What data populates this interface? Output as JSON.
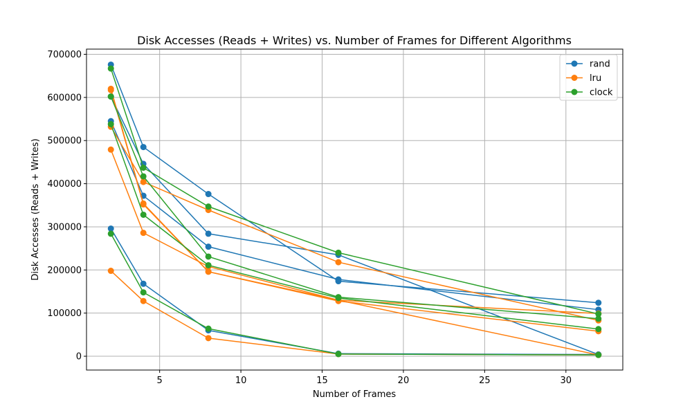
{
  "chart_data": {
    "type": "line",
    "title": "Disk Accesses (Reads + Writes) vs. Number of Frames for Different Algorithms",
    "xlabel": "Number of Frames",
    "ylabel": "Disk Accesses (Reads + Writes)",
    "xlim": [
      0.5,
      33.5
    ],
    "ylim": [
      -32000,
      712000
    ],
    "x_ticks": [
      5,
      10,
      15,
      20,
      25,
      30
    ],
    "y_ticks": [
      0,
      100000,
      200000,
      300000,
      400000,
      500000,
      600000,
      700000
    ],
    "grid": true,
    "legend_position": "top-right",
    "colors": {
      "rand": "#1f77b4",
      "lru": "#ff7f0e",
      "clock": "#2ca02c"
    },
    "x": [
      2,
      4,
      8,
      16,
      32
    ],
    "series": [
      {
        "name": "rand",
        "lines": [
          [
            676000,
            485000,
            376000,
            174000,
            124000
          ],
          [
            545000,
            372000,
            254000,
            178000,
            108000
          ],
          [
            296000,
            168000,
            60000,
            6000,
            4000
          ],
          [
            602000,
            446000,
            284000,
            235000,
            4000
          ]
        ]
      },
      {
        "name": "lru",
        "lines": [
          [
            620000,
            354000,
            196000,
            128000,
            58000
          ],
          [
            532000,
            404000,
            339000,
            218000,
            83000
          ],
          [
            479000,
            286000,
            208000,
            130000,
            99000
          ],
          [
            617000,
            352000,
            196000,
            130000,
            3000
          ],
          [
            198000,
            128000,
            42000,
            5000,
            3000
          ]
        ]
      },
      {
        "name": "clock",
        "lines": [
          [
            667000,
            437000,
            347000,
            240000,
            98000
          ],
          [
            602000,
            417000,
            231000,
            137000,
            87000
          ],
          [
            538000,
            328000,
            211000,
            135000,
            63000
          ],
          [
            284000,
            148000,
            64000,
            5000,
            3000
          ]
        ]
      }
    ]
  }
}
